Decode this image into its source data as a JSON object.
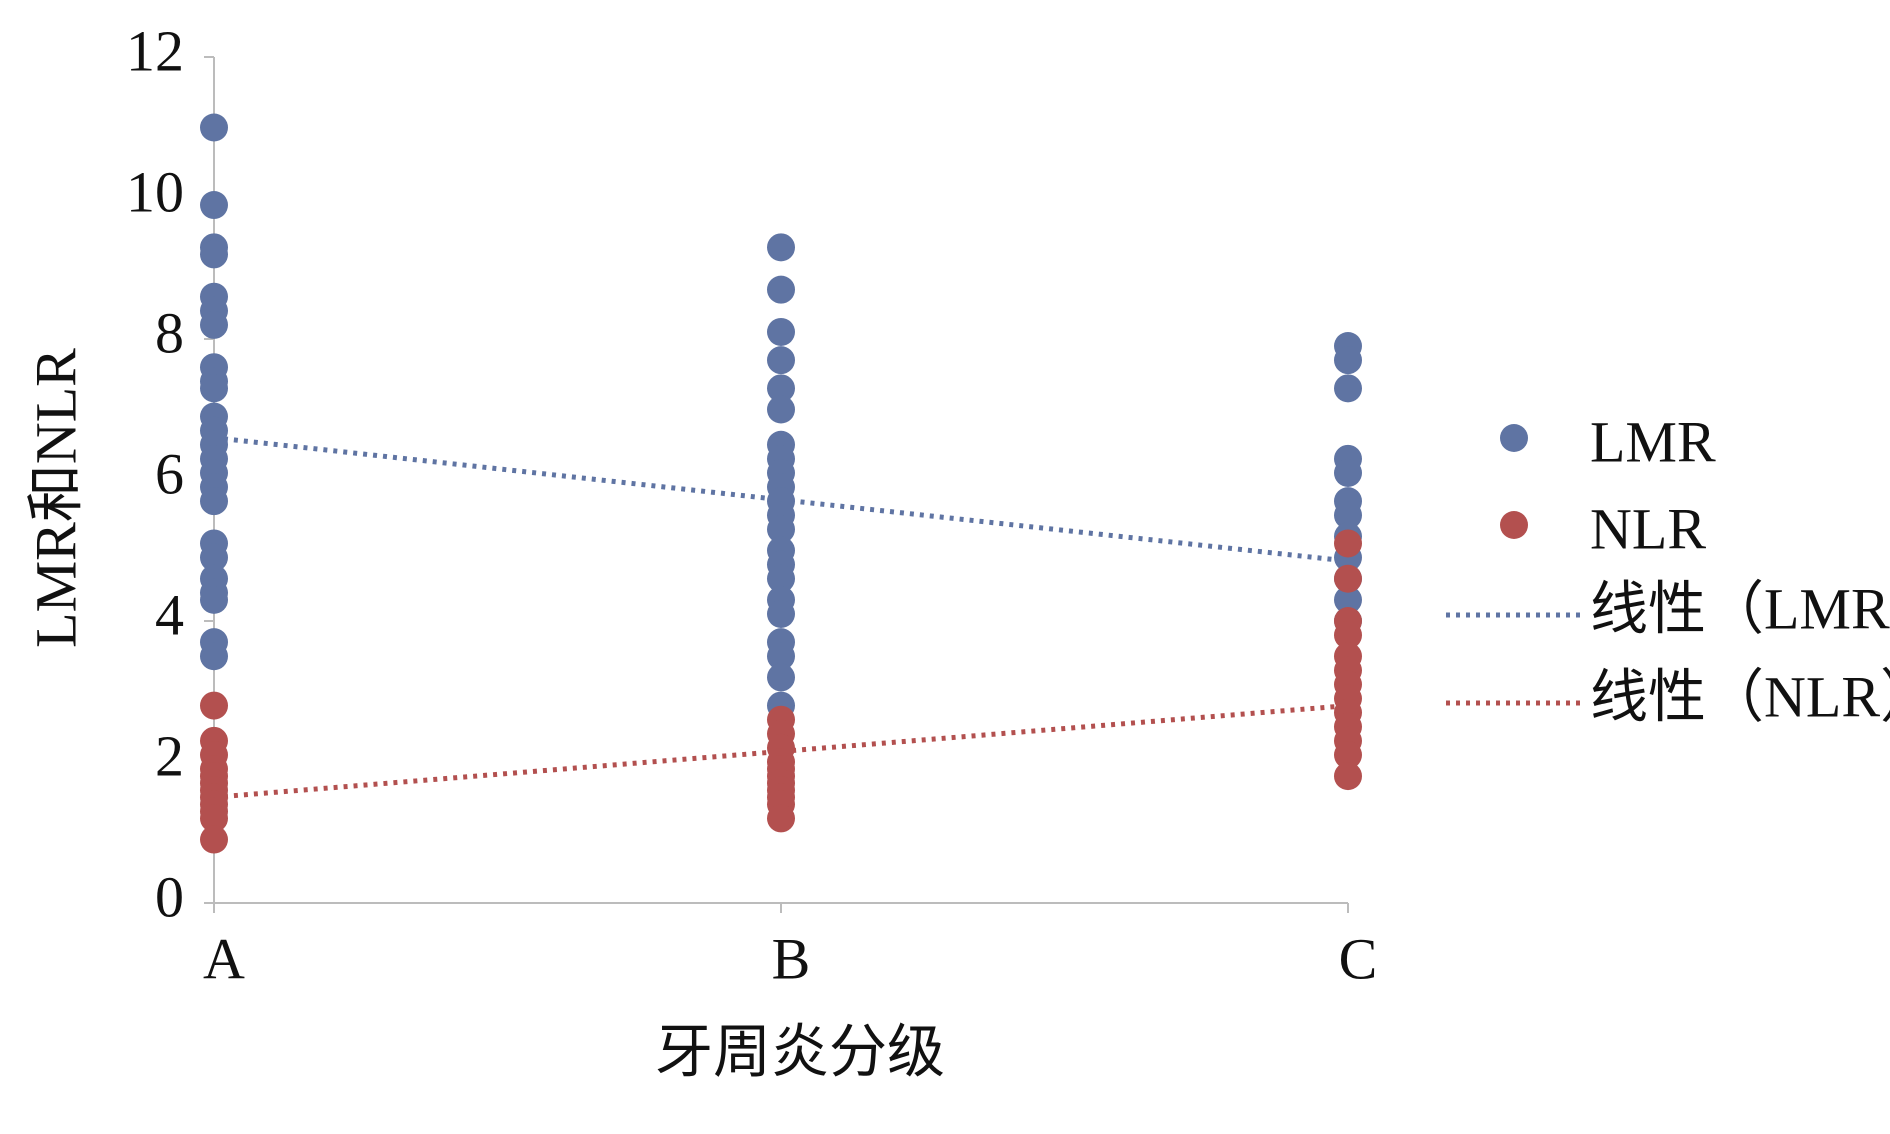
{
  "chart_data": {
    "type": "scatter",
    "x_label": "牙周炎分级",
    "y_label": "LMR和NLR",
    "categories": [
      "A",
      "B",
      "C"
    ],
    "ylim": [
      0,
      12
    ],
    "yticks": [
      0,
      2,
      4,
      6,
      8,
      10,
      12
    ],
    "legend": "right",
    "series": [
      {
        "name": "LMR",
        "color": "#5f74a3",
        "values": [
          [
            11,
            9.9,
            9.3,
            9.2,
            8.6,
            8.4,
            8.2,
            7.6,
            7.4,
            7.3,
            6.9,
            6.7,
            6.5,
            6.3,
            6.1,
            5.9,
            5.7,
            5.1,
            4.9,
            4.6,
            4.4,
            4.3,
            3.7,
            3.5
          ],
          [
            9.3,
            8.7,
            8.1,
            7.7,
            7.3,
            7.0,
            6.5,
            6.3,
            6.1,
            5.9,
            5.7,
            5.5,
            5.3,
            5.0,
            4.8,
            4.6,
            4.3,
            4.1,
            3.7,
            3.5,
            3.2,
            2.8
          ],
          [
            7.9,
            7.7,
            7.3,
            6.3,
            6.1,
            5.7,
            5.5,
            5.2,
            4.9,
            4.6,
            4.3,
            4.0
          ]
        ]
      },
      {
        "name": "NLR",
        "color": "#b3504f",
        "values": [
          [
            2.8,
            2.3,
            2.1,
            1.9,
            1.8,
            1.7,
            1.6,
            1.5,
            1.4,
            1.3,
            1.2,
            0.9
          ],
          [
            2.6,
            2.4,
            2.2,
            2.0,
            1.9,
            1.8,
            1.7,
            1.6,
            1.5,
            1.4,
            1.2
          ],
          [
            5.1,
            4.6,
            4.0,
            3.8,
            3.5,
            3.3,
            3.1,
            2.9,
            2.7,
            2.5,
            2.3,
            2.1,
            1.8
          ]
        ]
      }
    ],
    "trendlines": [
      {
        "name": "线性（LMR）",
        "color": "#5f74a3",
        "values": [
          6.6,
          5.72,
          4.85
        ]
      },
      {
        "name": "线性（NLR）",
        "color": "#b3504f",
        "values": [
          1.5,
          2.15,
          2.8
        ]
      }
    ]
  }
}
